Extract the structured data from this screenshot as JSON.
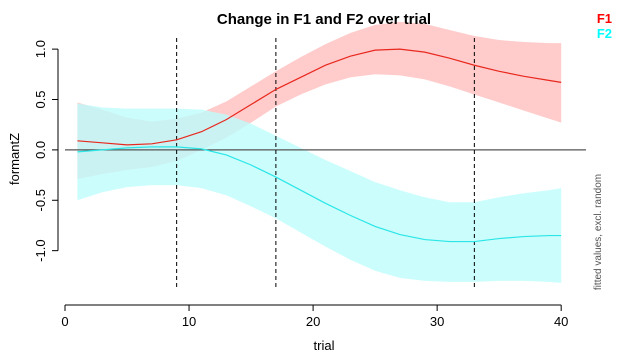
{
  "chart_data": {
    "type": "line",
    "title": "Change in F1 and F2 over trial",
    "xlabel": "trial",
    "ylabel": "formantZ",
    "xlim": [
      0,
      42
    ],
    "ylim": [
      -1.45,
      1.15
    ],
    "x_ticks": [
      0,
      10,
      20,
      30,
      40
    ],
    "y_ticks": [
      -1.0,
      -0.5,
      0.0,
      0.5,
      1.0
    ],
    "y_tick_labels": [
      "-1.0",
      "-0.5",
      "0.0",
      "0.5",
      "1.0"
    ],
    "reference_lines": {
      "horizontal": [
        0
      ],
      "vertical_dashed": [
        9,
        17,
        33
      ]
    },
    "side_note": "fitted values, excl. random",
    "legend": {
      "position": "top-right",
      "entries": [
        {
          "label": "F1",
          "color": "#ff0000"
        },
        {
          "label": "F2",
          "color": "#00ffff"
        }
      ]
    },
    "series": [
      {
        "name": "F1",
        "line_color": "#e8281e",
        "band_color": "#ffbcbc",
        "x": [
          1,
          3,
          5,
          7,
          9,
          11,
          13,
          15,
          17,
          19,
          21,
          23,
          25,
          27,
          29,
          31,
          33,
          35,
          37,
          39,
          40
        ],
        "y": [
          0.09,
          0.07,
          0.05,
          0.06,
          0.1,
          0.18,
          0.3,
          0.45,
          0.6,
          0.72,
          0.84,
          0.93,
          0.99,
          1.0,
          0.97,
          0.91,
          0.84,
          0.78,
          0.73,
          0.69,
          0.67
        ],
        "lower": [
          -0.29,
          -0.24,
          -0.2,
          -0.17,
          -0.11,
          0.0,
          0.12,
          0.27,
          0.43,
          0.55,
          0.65,
          0.72,
          0.75,
          0.74,
          0.7,
          0.63,
          0.55,
          0.47,
          0.39,
          0.31,
          0.27
        ],
        "upper": [
          0.47,
          0.4,
          0.32,
          0.28,
          0.31,
          0.37,
          0.48,
          0.63,
          0.78,
          0.92,
          1.05,
          1.16,
          1.24,
          1.27,
          1.25,
          1.19,
          1.13,
          1.09,
          1.07,
          1.06,
          1.06
        ]
      },
      {
        "name": "F2",
        "line_color": "#2ae6e6",
        "band_color": "#bdfdfd",
        "x": [
          1,
          3,
          5,
          7,
          9,
          11,
          13,
          15,
          17,
          19,
          21,
          23,
          25,
          27,
          29,
          31,
          33,
          35,
          37,
          39,
          40
        ],
        "y": [
          -0.02,
          0.0,
          0.02,
          0.03,
          0.03,
          0.01,
          -0.05,
          -0.15,
          -0.27,
          -0.4,
          -0.53,
          -0.65,
          -0.76,
          -0.84,
          -0.89,
          -0.91,
          -0.91,
          -0.88,
          -0.86,
          -0.85,
          -0.85
        ],
        "lower": [
          -0.5,
          -0.42,
          -0.37,
          -0.35,
          -0.35,
          -0.38,
          -0.45,
          -0.56,
          -0.68,
          -0.82,
          -0.96,
          -1.09,
          -1.2,
          -1.27,
          -1.3,
          -1.31,
          -1.31,
          -1.3,
          -1.3,
          -1.31,
          -1.32
        ],
        "upper": [
          0.46,
          0.42,
          0.41,
          0.41,
          0.41,
          0.4,
          0.35,
          0.26,
          0.14,
          0.02,
          -0.1,
          -0.21,
          -0.32,
          -0.4,
          -0.47,
          -0.52,
          -0.52,
          -0.47,
          -0.43,
          -0.4,
          -0.38
        ]
      }
    ]
  }
}
